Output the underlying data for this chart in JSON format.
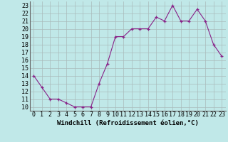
{
  "x": [
    0,
    1,
    2,
    3,
    4,
    5,
    6,
    7,
    8,
    9,
    10,
    11,
    12,
    13,
    14,
    15,
    16,
    17,
    18,
    19,
    20,
    21,
    22,
    23
  ],
  "y": [
    14,
    12.5,
    11,
    11,
    10.5,
    10,
    10,
    10,
    13,
    15.5,
    19,
    19,
    20,
    20,
    20,
    21.5,
    21,
    23,
    21,
    21,
    22.5,
    21,
    18,
    16.5
  ],
  "line_color": "#882288",
  "marker": "+",
  "bg_color": "#c0e8e8",
  "xlabel": "Windchill (Refroidissement éolien,°C)",
  "ylim": [
    9.5,
    23.5
  ],
  "xlim": [
    -0.5,
    23.5
  ],
  "grid_color": "#aabbbb",
  "xlabel_fontsize": 6.5,
  "tick_fontsize": 6.0
}
